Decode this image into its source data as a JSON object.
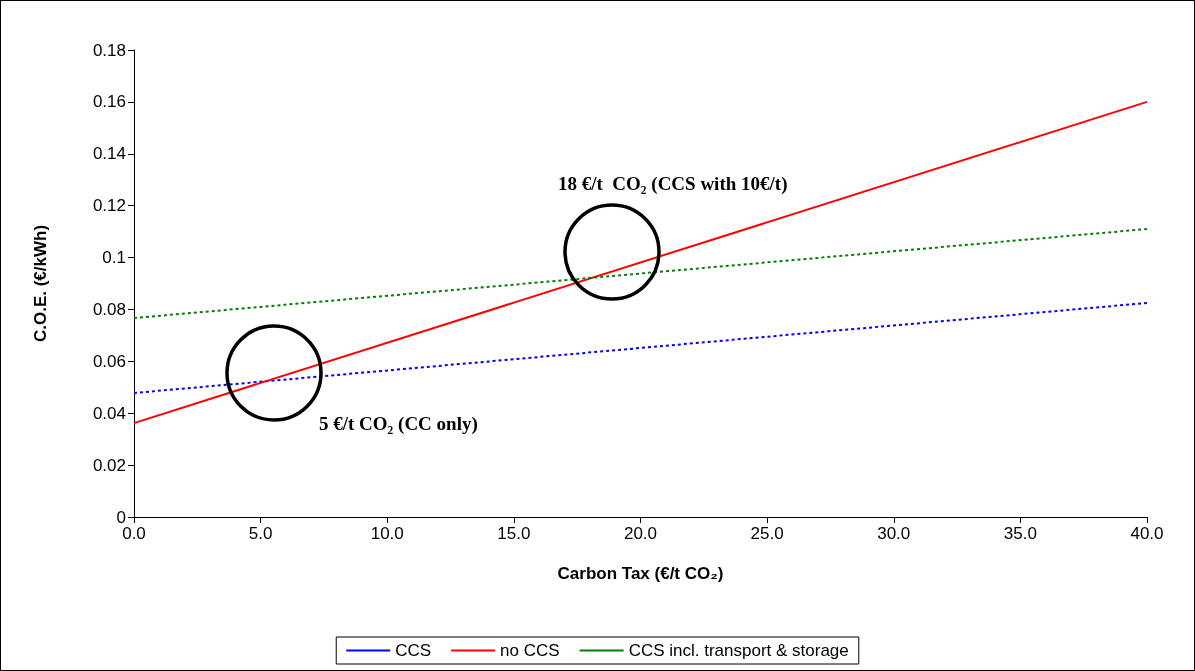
{
  "chart_data": {
    "type": "line",
    "xlabel": "Carbon Tax (€/t CO₂)",
    "ylabel": "C.O.E. (€/kWh)",
    "x": [
      0,
      40
    ],
    "series": [
      {
        "name": "CCS",
        "color": "#0000ff",
        "values": [
          0.0478,
          0.0825
        ],
        "line_style": "dotted"
      },
      {
        "name": "no CCS",
        "color": "#ff0000",
        "values": [
          0.0362,
          0.16
        ],
        "line_style": "solid"
      },
      {
        "name": "CCS incl. transport & storage",
        "color": "#008000",
        "values": [
          0.0767,
          0.111
        ],
        "line_style": "dotted"
      }
    ],
    "xlim": [
      0,
      40
    ],
    "xticks": [
      {
        "value": 0,
        "label": "0.0"
      },
      {
        "value": 5,
        "label": "5.0"
      },
      {
        "value": 10,
        "label": "10.0"
      },
      {
        "value": 15,
        "label": "15.0"
      },
      {
        "value": 20,
        "label": "20.0"
      },
      {
        "value": 25,
        "label": "25.0"
      },
      {
        "value": 30,
        "label": "30.0"
      },
      {
        "value": 35,
        "label": "35.0"
      },
      {
        "value": 40,
        "label": "40.0"
      }
    ],
    "ylim": [
      0,
      0.18
    ],
    "yticks": [
      0,
      0.02,
      0.04,
      0.06,
      0.08,
      0.1,
      0.12,
      0.14,
      0.16,
      0.18
    ],
    "annotations": [
      "18 €/t  CO₂ (CCS with 10€/t)",
      "5 €/t CO₂ (CC only)"
    ],
    "legend": "bottom",
    "grid": false,
    "marker": "none"
  }
}
